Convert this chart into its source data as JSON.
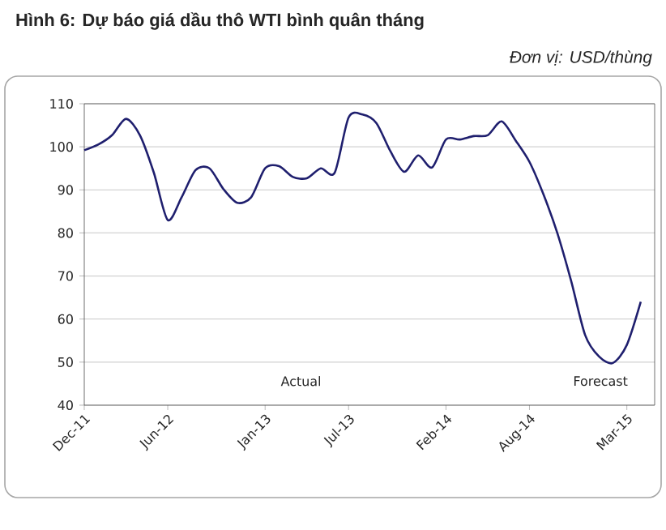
{
  "chart_data": {
    "type": "line",
    "title": "Hình 6:  Dự báo giá dầu thô WTI bình quân tháng",
    "subtitle": "Đơn vị: USD/thùng",
    "annotations": [
      "Actual",
      "Forecast"
    ],
    "x": [
      "2011-12",
      "2012-01",
      "2012-02",
      "2012-03",
      "2012-04",
      "2012-05",
      "2012-06",
      "2012-07",
      "2012-08",
      "2012-09",
      "2012-10",
      "2012-11",
      "2012-12",
      "2013-01",
      "2013-02",
      "2013-03",
      "2013-04",
      "2013-05",
      "2013-06",
      "2013-07",
      "2013-08",
      "2013-09",
      "2013-10",
      "2013-11",
      "2013-12",
      "2014-01",
      "2014-02",
      "2014-03",
      "2014-04",
      "2014-05",
      "2014-06",
      "2014-07",
      "2014-08",
      "2014-09",
      "2014-10",
      "2014-11",
      "2014-12",
      "2015-01",
      "2015-02",
      "2015-03",
      "2015-04"
    ],
    "values": [
      99.2,
      100.5,
      102.7,
      106.5,
      102.7,
      94,
      83,
      88.3,
      94.6,
      95,
      90.2,
      87,
      88.3,
      95,
      95.5,
      93,
      92.7,
      95,
      94,
      106.8,
      107.5,
      105.5,
      99,
      94.2,
      98,
      95.2,
      101.7,
      101.7,
      102.5,
      102.7,
      105.9,
      101.5,
      96.5,
      89,
      80,
      68.8,
      56.3,
      51.3,
      49.8,
      54,
      64
    ],
    "color": "#1f1f6e",
    "line_style": "solid",
    "marker": "none",
    "xlim": [
      "2011-12",
      "2015-05"
    ],
    "xticks": [
      {
        "value": "2011-12",
        "label": "Dec-11"
      },
      {
        "value": "2012-06",
        "label": "Jun-12"
      },
      {
        "value": "2013-01",
        "label": "Jan-13"
      },
      {
        "value": "2013-07",
        "label": "Jul-13"
      },
      {
        "value": "2014-02",
        "label": "Feb-14"
      },
      {
        "value": "2014-08",
        "label": "Aug-14"
      },
      {
        "value": "2015-03",
        "label": "Mar-15"
      }
    ],
    "ylim": [
      40,
      110
    ],
    "yticks": [
      40,
      50,
      60,
      70,
      80,
      90,
      100,
      110
    ],
    "grid": "y"
  }
}
